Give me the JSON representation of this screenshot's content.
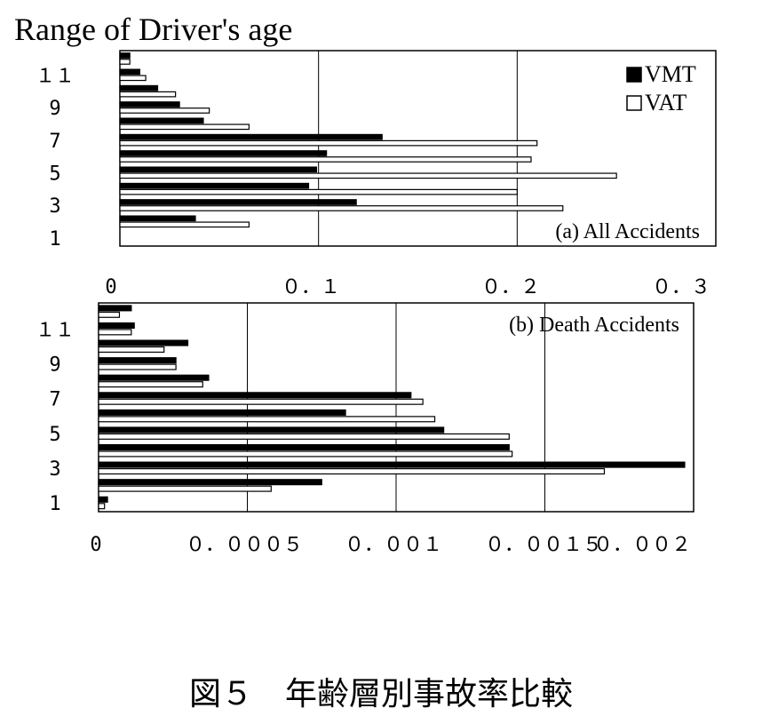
{
  "y_axis_title": "Range of Driver's age",
  "caption": "図５　年齢層別事故率比較",
  "colors": {
    "vmt": "#000000",
    "vat": "#ffffff",
    "stroke": "#000000",
    "grid": "#000000"
  },
  "chart_data": [
    {
      "type": "bar",
      "orientation": "horizontal",
      "annotation": "(a) All Accidents",
      "legend": {
        "position": "top-right",
        "entries": [
          "VMT",
          "VAT"
        ]
      },
      "categories": [
        "1",
        "2",
        "3",
        "4",
        "5",
        "6",
        "7",
        "8",
        "9",
        "10",
        "11",
        "12"
      ],
      "y_tick_labels": [
        {
          "category": "1",
          "text": "1"
        },
        {
          "category": "3",
          "text": "3"
        },
        {
          "category": "5",
          "text": "5"
        },
        {
          "category": "7",
          "text": "7"
        },
        {
          "category": "9",
          "text": "9"
        },
        {
          "category": "11",
          "text": "１１"
        }
      ],
      "x_tick_labels": [
        "0",
        "０．１",
        "０．２",
        "０．３"
      ],
      "x_ticks": [
        0,
        0.1,
        0.2,
        0.3
      ],
      "xlim": [
        0,
        0.3
      ],
      "grid": true,
      "series": [
        {
          "name": "VMT",
          "values": [
            0.0,
            0.038,
            0.119,
            0.095,
            0.099,
            0.104,
            0.132,
            0.042,
            0.03,
            0.019,
            0.01,
            0.005
          ]
        },
        {
          "name": "VAT",
          "values": [
            0.0,
            0.065,
            0.223,
            0.2,
            0.25,
            0.207,
            0.21,
            0.065,
            0.045,
            0.028,
            0.013,
            0.005
          ]
        }
      ]
    },
    {
      "type": "bar",
      "orientation": "horizontal",
      "annotation": "(b) Death Accidents",
      "categories": [
        "1",
        "2",
        "3",
        "4",
        "5",
        "6",
        "7",
        "8",
        "9",
        "10",
        "11",
        "12"
      ],
      "y_tick_labels": [
        {
          "category": "1",
          "text": "1"
        },
        {
          "category": "3",
          "text": "3"
        },
        {
          "category": "5",
          "text": "5"
        },
        {
          "category": "7",
          "text": "7"
        },
        {
          "category": "9",
          "text": "9"
        },
        {
          "category": "11",
          "text": "１１"
        }
      ],
      "x_tick_labels": [
        "0",
        "０．０００５",
        "０．００１",
        "０．００１５",
        "０．００２"
      ],
      "x_ticks": [
        0,
        0.0005,
        0.001,
        0.0015,
        0.002
      ],
      "xlim": [
        0,
        0.002
      ],
      "grid": true,
      "series": [
        {
          "name": "VMT",
          "values": [
            3e-05,
            0.00075,
            0.00197,
            0.00138,
            0.00116,
            0.00083,
            0.00105,
            0.00037,
            0.00026,
            0.0003,
            0.00012,
            0.00011
          ]
        },
        {
          "name": "VAT",
          "values": [
            2e-05,
            0.00058,
            0.0017,
            0.00139,
            0.00138,
            0.00113,
            0.00109,
            0.00035,
            0.00026,
            0.00022,
            0.00011,
            7e-05
          ]
        }
      ]
    }
  ]
}
